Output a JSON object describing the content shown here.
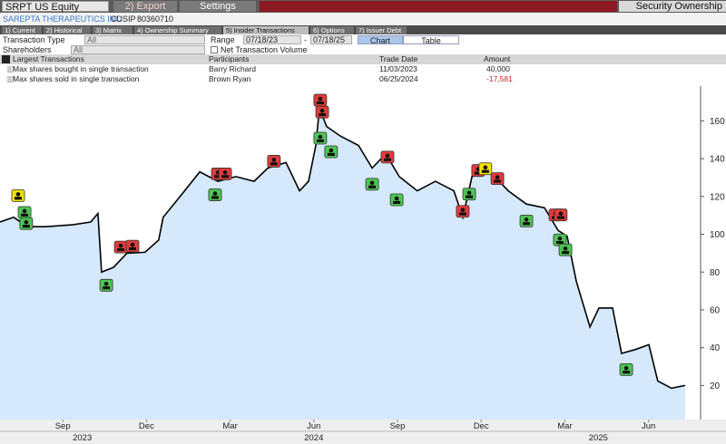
{
  "header": {
    "ticker": "SRPT US Equity",
    "export": "2) Export",
    "settings": "Settings",
    "security_ownership": "Security Ownership"
  },
  "company": {
    "name": "SAREPTA THERAPEUTICS INC",
    "cusip_label": "CUSIP",
    "cusip": "80360710"
  },
  "tabs": [
    "1) Current",
    "2) Historical",
    "3) Matrix",
    "4) Ownership Summary",
    "5) Insider Transactions",
    "6) Options",
    "7) Issuer Debt"
  ],
  "filters": {
    "transaction_type_label": "Transaction Type",
    "transaction_type": "All",
    "range_label": "Range",
    "range_start": "07/18/23",
    "range_separator": "-",
    "range_end": "07/18/25",
    "chart_button": "Chart",
    "table_button": "Table",
    "shareholders_label": "Shareholders",
    "shareholders": "All",
    "net_volume": "Net Transaction Volume"
  },
  "table": {
    "headers": [
      "Largest Transactions",
      "Participants",
      "Trade Date",
      "Amount"
    ],
    "rows": [
      [
        "Max shares bought in single transaction",
        "Barry Richard",
        "11/03/2023",
        "40,000"
      ],
      [
        "Max shares sold in single transaction",
        "Brown Ryan",
        "06/25/2024",
        "-17,581"
      ]
    ]
  },
  "chart_data": {
    "type": "line",
    "color": "#000000",
    "fill": "#d6e8fb",
    "x": [
      0.25,
      0.74,
      1.23,
      1.88,
      2.85,
      3.5,
      3.76,
      3.89,
      4.32,
      4.8,
      5.45,
      5.94,
      6.1,
      6.76,
      7.41,
      8.06,
      8.71,
      9.36,
      9.85,
      10.5,
      10.99,
      11.31,
      11.57,
      11.7,
      11.96,
      12.45,
      13.1,
      13.59,
      14.08,
      14.56,
      15.21,
      15.86,
      16.52,
      16.84,
      17.17,
      17.82,
      18.47,
      19.12,
      19.77,
      20.26,
      20.58,
      20.91,
      21.4,
      21.72,
      22.21,
      22.53,
      23.02,
      23.51,
      23.83,
      24.32,
      24.81
    ],
    "values": [
      106.5,
      109,
      104,
      104,
      105,
      106.5,
      111,
      80,
      82.5,
      90,
      90.5,
      97,
      109,
      121,
      133,
      128,
      130.5,
      128,
      135,
      138,
      123,
      128,
      147,
      166.6,
      157,
      152,
      147,
      135,
      142.6,
      130.5,
      123,
      128,
      123,
      109,
      130.5,
      133,
      123,
      116,
      114,
      102,
      99,
      75,
      51,
      61,
      61,
      37,
      39,
      41.6,
      22.4,
      18.6,
      20
    ],
    "markers": [
      {
        "color": "#e23b3b",
        "x": [
          4.58,
          5.0,
          8.06,
          8.32,
          10.07,
          11.73,
          11.8,
          14.14,
          16.84,
          17.39,
          18.08,
          20.16,
          20.35
        ],
        "values": [
          93,
          93.5,
          131.7,
          131.7,
          138.4,
          170.7,
          164.4,
          140.6,
          111.9,
          133.5,
          129.2,
          110,
          110
        ]
      },
      {
        "color": "#4cc552",
        "x": [
          1.13,
          1.19,
          4.06,
          7.96,
          11.73,
          12.12,
          13.59,
          14.47,
          17.07,
          19.12,
          20.32,
          20.52,
          22.7
        ],
        "values": [
          111.3,
          105.4,
          72.8,
          120.6,
          150.6,
          143.4,
          126.2,
          118,
          121,
          106.8,
          96.8,
          91.5,
          28.2
        ]
      },
      {
        "color": "#f2e300",
        "x": [
          0.9,
          17.65
        ],
        "values": [
          120.2,
          134.4
        ]
      }
    ],
    "xlim": [
      0.25,
      25.3
    ],
    "ylim": [
      2,
      176
    ],
    "yticks": [
      20,
      40,
      60,
      80,
      100,
      120,
      140,
      160
    ],
    "xticks": [
      {
        "value": 2.5,
        "label": "Sep"
      },
      {
        "value": 5.5,
        "label": "Dec"
      },
      {
        "value": 8.5,
        "label": "Mar"
      },
      {
        "value": 11.5,
        "label": "Jun"
      },
      {
        "value": 14.5,
        "label": "Sep"
      },
      {
        "value": 17.5,
        "label": "Dec"
      },
      {
        "value": 20.5,
        "label": "Mar"
      },
      {
        "value": 23.5,
        "label": "Jun"
      }
    ],
    "year_labels": [
      {
        "value": 3.2,
        "label": "2023"
      },
      {
        "value": 11.5,
        "label": "2024"
      },
      {
        "value": 21.7,
        "label": "2025"
      }
    ],
    "grid": false
  }
}
